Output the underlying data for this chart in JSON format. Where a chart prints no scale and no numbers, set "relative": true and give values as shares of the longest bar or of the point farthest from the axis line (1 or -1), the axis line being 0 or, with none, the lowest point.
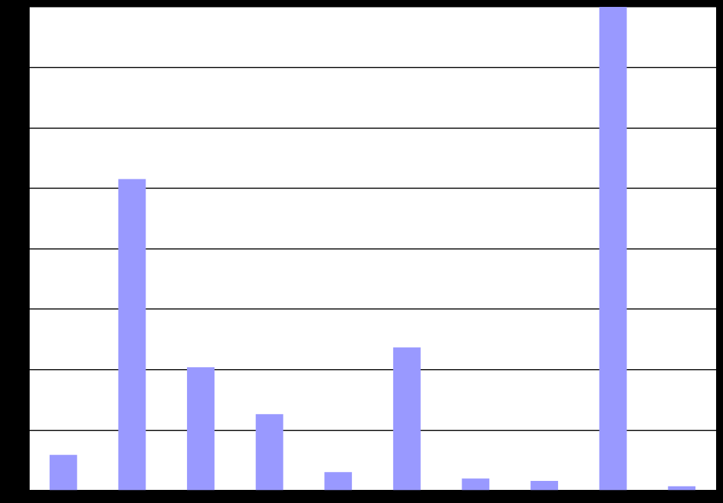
{
  "chart_data": {
    "type": "bar",
    "relative": true,
    "grid": "y",
    "color": "#9999ff",
    "categories": [
      null,
      null,
      null,
      null,
      null,
      null,
      null,
      null,
      null,
      null
    ],
    "values": [
      0.074,
      0.644,
      0.255,
      0.158,
      0.038,
      0.296,
      0.025,
      0.02,
      1,
      0.009
    ]
  }
}
